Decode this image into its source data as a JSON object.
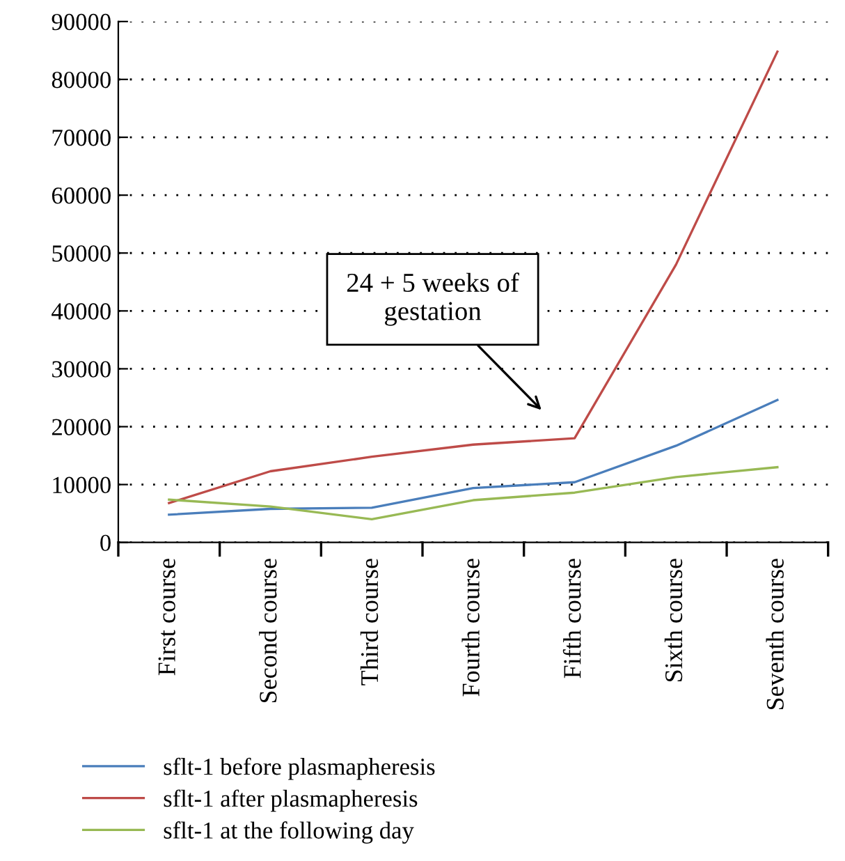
{
  "chart_data": {
    "type": "line",
    "categories": [
      "First course",
      "Second course",
      "Third course",
      "Fourth course",
      "Fifth course",
      "Sixth course",
      "Seventh course"
    ],
    "series": [
      {
        "name": "sflt-1 before plasmapheresis",
        "color": "#4a7ebb",
        "values": [
          4800,
          5800,
          6000,
          9400,
          10400,
          16700,
          24600
        ]
      },
      {
        "name": "sflt-1 after plasmapheresis",
        "color": "#be4b48",
        "values": [
          6800,
          12300,
          14800,
          16900,
          18000,
          48000,
          84800
        ]
      },
      {
        "name": "sflt-1 at the following day",
        "color": "#98b954",
        "values": [
          7400,
          6200,
          4000,
          7300,
          8600,
          11300,
          13000
        ]
      }
    ],
    "ylim": [
      0,
      90000
    ],
    "yticks": [
      0,
      10000,
      20000,
      30000,
      40000,
      50000,
      60000,
      70000,
      80000,
      90000
    ],
    "grid": "y",
    "legend": "bottom",
    "marker": "none",
    "line_style": "solid",
    "annotations": [
      "24 + 5 weeks of\ngestation"
    ]
  }
}
